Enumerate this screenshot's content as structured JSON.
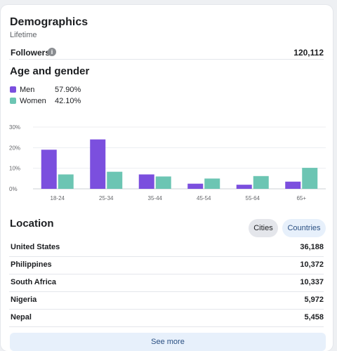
{
  "header": {
    "title": "Demographics",
    "subtitle": "Lifetime"
  },
  "followers": {
    "label": "Followers",
    "value": "120,112",
    "info_icon": "info-icon"
  },
  "age_gender": {
    "title": "Age and gender",
    "legend": [
      {
        "name": "Men",
        "percent": "57.90%",
        "color": "#7b4fde"
      },
      {
        "name": "Women",
        "percent": "42.10%",
        "color": "#6cc5b3"
      }
    ]
  },
  "chart_data": {
    "type": "bar",
    "categories": [
      "18-24",
      "25-34",
      "35-44",
      "45-54",
      "55-64",
      "65+"
    ],
    "series": [
      {
        "name": "Men",
        "values": [
          19,
          24,
          7,
          2.5,
          2,
          3.5
        ],
        "color": "#7b4fde"
      },
      {
        "name": "Women",
        "values": [
          7,
          8.3,
          6,
          5,
          6.2,
          10.2
        ],
        "color": "#6cc5b3"
      }
    ],
    "yticks": [
      "0%",
      "10%",
      "20%",
      "30%"
    ],
    "ylim": [
      0,
      30
    ],
    "grid": true,
    "title": "",
    "xlabel": "",
    "ylabel": ""
  },
  "location": {
    "title": "Location",
    "tabs": {
      "cities": "Cities",
      "countries": "Countries",
      "selected": "cities"
    },
    "rows": [
      {
        "name": "United States",
        "value": "36,188"
      },
      {
        "name": "Philippines",
        "value": "10,372"
      },
      {
        "name": "South Africa",
        "value": "10,337"
      },
      {
        "name": "Nigeria",
        "value": "5,972"
      },
      {
        "name": "Nepal",
        "value": "5,458"
      }
    ],
    "see_more": "See more"
  }
}
